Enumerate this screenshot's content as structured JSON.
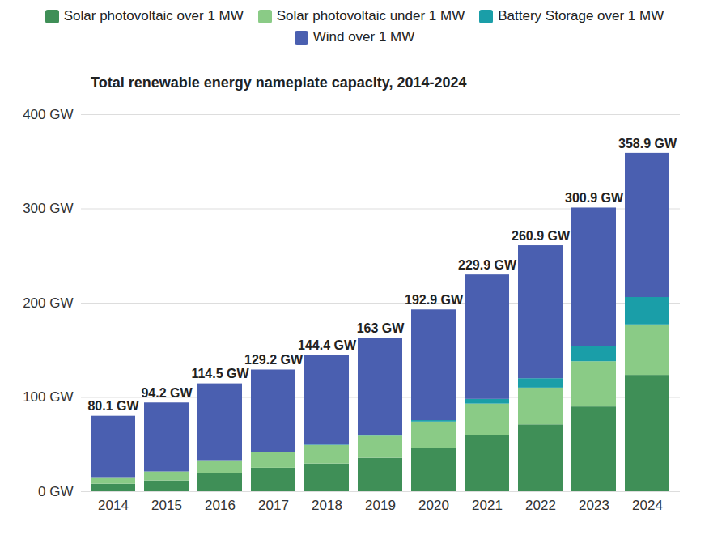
{
  "chart_data": {
    "type": "bar",
    "title": "Total renewable energy nameplate capacity, 2014-2024",
    "categories": [
      "2014",
      "2015",
      "2016",
      "2017",
      "2018",
      "2019",
      "2020",
      "2021",
      "2022",
      "2023",
      "2024"
    ],
    "series": [
      {
        "name": "Solar photovoltaic over 1 MW",
        "color": "#3f8f57",
        "values": [
          8,
          11.5,
          19.5,
          25,
          29.5,
          35.5,
          46,
          60,
          71,
          90,
          123.5
        ]
      },
      {
        "name": "Solar photovoltaic under 1 MW",
        "color": "#8acb86",
        "values": [
          7,
          9.5,
          13.5,
          17,
          19.5,
          23.5,
          28,
          33,
          39,
          48,
          53.5
        ]
      },
      {
        "name": "Battery Storage over 1 MW",
        "color": "#1a9ea8",
        "values": [
          0,
          0,
          0,
          0,
          0.5,
          0.8,
          1.5,
          5,
          10,
          16,
          29
        ]
      },
      {
        "name": "Wind over 1 MW",
        "color": "#4a5fb0",
        "values": [
          65.1,
          73.2,
          81.5,
          87.2,
          94.9,
          103.2,
          117.4,
          131.9,
          140.9,
          146.9,
          152.9
        ]
      }
    ],
    "totals": [
      80.1,
      94.2,
      114.5,
      129.2,
      144.4,
      163,
      192.9,
      229.9,
      260.9,
      300.9,
      358.9
    ],
    "total_labels": [
      "80.1 GW",
      "94.2 GW",
      "114.5 GW",
      "129.2 GW",
      "144.4 GW",
      "163 GW",
      "192.9 GW",
      "229.9 GW",
      "260.9 GW",
      "300.9 GW",
      "358.9 GW"
    ],
    "ylim": [
      0,
      400
    ],
    "yticks": [
      {
        "value": 0,
        "label": "0 GW"
      },
      {
        "value": 100,
        "label": "100 GW"
      },
      {
        "value": 200,
        "label": "200 GW"
      },
      {
        "value": 300,
        "label": "300 GW"
      },
      {
        "value": 400,
        "label": "400 GW"
      }
    ],
    "grid": true,
    "stacked": true,
    "legend": "top"
  }
}
